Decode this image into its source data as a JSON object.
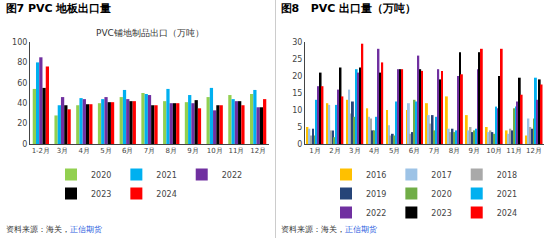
{
  "chart_data": [
    {
      "type": "bar",
      "title": "图7 PVC 地板出口量",
      "subtitle": "PVC铺地制品出口（万吨）",
      "categories": [
        "1-2月",
        "3月",
        "4月",
        "5月",
        "6月",
        "7月",
        "8月",
        "9月",
        "10月",
        "11月",
        "12月"
      ],
      "series": [
        {
          "name": "2020",
          "color": "#92d050",
          "values": [
            54,
            28,
            38,
            40,
            46,
            50,
            42,
            41,
            46,
            48,
            49
          ]
        },
        {
          "name": "2021",
          "color": "#00b0f0",
          "values": [
            80,
            38,
            45,
            44,
            53,
            49,
            54,
            48,
            55,
            44,
            53
          ]
        },
        {
          "name": "2022",
          "color": "#7030a0",
          "values": [
            85,
            46,
            44,
            46,
            44,
            48,
            40,
            40,
            33,
            42,
            36
          ]
        },
        {
          "name": "2023",
          "color": "#000000",
          "values": [
            55,
            38,
            39,
            41,
            42,
            38,
            40,
            43,
            38,
            42,
            36
          ]
        },
        {
          "name": "2024",
          "color": "#ff0000",
          "values": [
            76,
            34,
            39,
            41,
            42,
            38,
            40,
            35,
            38,
            38,
            44
          ]
        }
      ],
      "ylim": [
        0,
        100
      ],
      "yticks": [
        0,
        20,
        40,
        60,
        80,
        100
      ],
      "grid": false,
      "legend": "bottom",
      "annotations": [
        {
          "text": "资料来源：海关，",
          "color": "#333333"
        },
        {
          "text": "正信期货",
          "color": "#1f5ae0"
        }
      ]
    },
    {
      "type": "bar",
      "title": "图8   PVC 出口量（万吨）",
      "categories": [
        "1月",
        "2月",
        "3月",
        "4月",
        "5月",
        "6月",
        "7月",
        "8月",
        "9月",
        "10月",
        "11月",
        "12月"
      ],
      "series": [
        {
          "name": "2016",
          "color": "#ffc000",
          "values": [
            5,
            12,
            13,
            10.5,
            10,
            10,
            12,
            14,
            8.5,
            5,
            4,
            2.5
          ]
        },
        {
          "name": "2017",
          "color": "#9dc3e6",
          "values": [
            4.5,
            11.5,
            16,
            8,
            5.5,
            12,
            8.5,
            4.5,
            4,
            3.5,
            3,
            7.5
          ]
        },
        {
          "name": "2018",
          "color": "#a9a9a9",
          "values": [
            2.5,
            4,
            9,
            7.5,
            2.5,
            3,
            6,
            3.5,
            5,
            4,
            4.5,
            5
          ]
        },
        {
          "name": "2019",
          "color": "#264478",
          "values": [
            4.5,
            4,
            12.5,
            4,
            3,
            3.5,
            8.5,
            4.5,
            3.5,
            3.5,
            4,
            4.5
          ]
        },
        {
          "name": "2020",
          "color": "#70ad47",
          "values": [
            2.5,
            2,
            8,
            4,
            2.5,
            13,
            4,
            3.5,
            4,
            3,
            10.5,
            7.5
          ]
        },
        {
          "name": "2021",
          "color": "#00b0f0",
          "values": [
            13,
            11.5,
            22,
            8,
            12.5,
            12.5,
            8,
            4,
            4.5,
            11,
            11,
            19.5
          ]
        },
        {
          "name": "2022",
          "color": "#7030a0",
          "values": [
            17,
            16,
            21,
            28,
            22,
            26,
            22,
            20,
            22,
            10.5,
            12.5,
            13
          ]
        },
        {
          "name": "2023",
          "color": "#000000",
          "values": [
            21,
            22.5,
            22.5,
            21,
            22,
            22,
            19,
            27,
            27,
            20,
            19.5,
            19
          ]
        },
        {
          "name": "2024",
          "color": "#ff0000",
          "values": [
            17,
            14,
            29.5,
            24,
            22,
            21.5,
            21.5,
            20.5,
            28,
            28,
            14.5,
            17.5
          ]
        }
      ],
      "ylim": [
        0,
        30
      ],
      "yticks": [
        0,
        5,
        10,
        15,
        20,
        25,
        30
      ],
      "grid": false,
      "legend": "bottom",
      "annotations": [
        {
          "text": "资料来源：海关，",
          "color": "#333333"
        },
        {
          "text": "正信期货",
          "color": "#1f5ae0"
        }
      ]
    }
  ]
}
